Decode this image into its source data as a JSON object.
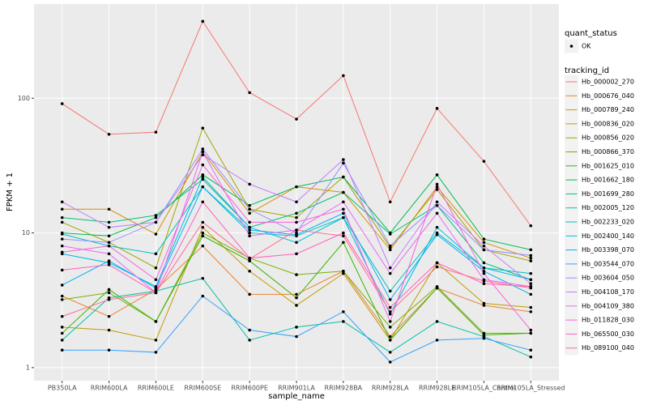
{
  "chart_data": {
    "type": "line",
    "x_label": "sample_name",
    "y_label": "FPKM + 1",
    "log_scale": true,
    "grid": true,
    "ylim": [
      0.8,
      500
    ],
    "yticks": [
      1,
      10,
      100
    ],
    "point_color": "#000000",
    "shape_legend": {
      "title": "quant_status",
      "items": [
        "OK"
      ]
    },
    "color_legend_title": "tracking_id",
    "categories": [
      "PB350LA",
      "RRIM600LA",
      "RRIM600LE",
      "RRIM600SE",
      "RRIM600PE",
      "RRIM901LA",
      "RRIM928BA",
      "RRIM928LA",
      "RRIM928LE",
      "RRIM105LA_Control",
      "RRIM105LA_Stressed"
    ],
    "series": [
      {
        "name": "Hb_000002_270",
        "color": "#F8766D",
        "values": [
          91,
          54,
          56,
          372,
          110,
          70,
          147,
          17,
          84,
          34,
          11.3
        ]
      },
      {
        "name": "Hb_000676_040",
        "color": "#EA8331",
        "values": [
          3.4,
          2.4,
          3.8,
          8,
          3.5,
          3.5,
          5.2,
          1.7,
          3.9,
          2.9,
          2.6
        ]
      },
      {
        "name": "Hb_000789_240",
        "color": "#D89000",
        "values": [
          15,
          15,
          9.8,
          40,
          14,
          22,
          20,
          7.5,
          22,
          8.5,
          6.5
        ]
      },
      {
        "name": "Hb_000836_020",
        "color": "#C09B00",
        "values": [
          2.0,
          1.9,
          1.6,
          11,
          5.2,
          2.9,
          5.0,
          1.6,
          6,
          3,
          2.8
        ]
      },
      {
        "name": "Hb_000856_020",
        "color": "#A3A500",
        "values": [
          12,
          8.5,
          5.5,
          60,
          15,
          13,
          26,
          7.8,
          21,
          7.5,
          6.2
        ]
      },
      {
        "name": "Hb_000866_370",
        "color": "#7CAE00",
        "values": [
          3.2,
          3.6,
          2.2,
          10,
          6.5,
          4.9,
          5.2,
          2.0,
          4,
          1.8,
          1.8
        ]
      },
      {
        "name": "Hb_001625_010",
        "color": "#39B600",
        "values": [
          1.8,
          3.8,
          2.2,
          9.5,
          6.2,
          3.3,
          8.5,
          1.6,
          3.9,
          1.75,
          1.8
        ]
      },
      {
        "name": "Hb_001662_180",
        "color": "#00BB4E",
        "values": [
          10,
          9.5,
          13,
          27,
          16,
          22,
          26,
          10,
          27,
          9,
          7.5
        ]
      },
      {
        "name": "Hb_001699_280",
        "color": "#00BF7D",
        "values": [
          13,
          12,
          13.5,
          25,
          11,
          14,
          20,
          9.8,
          16,
          6,
          4.5
        ]
      },
      {
        "name": "Hb_002005_120",
        "color": "#00C1A3",
        "values": [
          1.6,
          3.3,
          3.7,
          4.6,
          1.6,
          2.0,
          2.2,
          1.3,
          2.2,
          1.7,
          1.2
        ]
      },
      {
        "name": "Hb_002233_020",
        "color": "#00BFC4",
        "values": [
          9.8,
          8,
          7,
          22,
          10,
          9.5,
          13,
          3.7,
          10,
          5.5,
          5
        ]
      },
      {
        "name": "Hb_002400_140",
        "color": "#00BAE0",
        "values": [
          7,
          6,
          4,
          26,
          11,
          8.5,
          13,
          2.5,
          11,
          5.5,
          4.5
        ]
      },
      {
        "name": "Hb_003398_070",
        "color": "#00B0F6",
        "values": [
          4.1,
          6.2,
          3.9,
          22,
          10.5,
          9.7,
          14,
          3.2,
          9.7,
          5.2,
          3.5
        ]
      },
      {
        "name": "Hb_003544_070",
        "color": "#35A2FF",
        "values": [
          1.35,
          1.35,
          1.3,
          3.4,
          1.9,
          1.7,
          2.6,
          1.1,
          1.6,
          1.65,
          1.35
        ]
      },
      {
        "name": "Hb_003604_050",
        "color": "#9590FF",
        "values": [
          9,
          8.5,
          12,
          42,
          15,
          10,
          33,
          8,
          16,
          7.5,
          6.8
        ]
      },
      {
        "name": "Hb_004108_170",
        "color": "#C77CFF",
        "values": [
          17,
          11,
          12,
          38,
          23,
          17,
          35,
          5.5,
          17,
          8,
          4.2
        ]
      },
      {
        "name": "Hb_004109_380",
        "color": "#E76BF3",
        "values": [
          8,
          7,
          3.6,
          40,
          9.5,
          10.5,
          17,
          5,
          14,
          4.5,
          4
        ]
      },
      {
        "name": "Hb_011828_030",
        "color": "#FA62DB",
        "values": [
          7.2,
          8,
          4.5,
          32,
          12,
          12,
          15,
          2.2,
          23,
          5,
          1.9
        ]
      },
      {
        "name": "Hb_065500_030",
        "color": "#FF62BC",
        "values": [
          5.3,
          5.8,
          3.6,
          17,
          6.5,
          7,
          10,
          2.8,
          6,
          4.2,
          4
        ]
      },
      {
        "name": "Hb_089100_040",
        "color": "#FF6C91",
        "values": [
          2.4,
          3.2,
          3.6,
          12,
          6.4,
          10.5,
          9.5,
          2.6,
          5.6,
          4.4,
          3.9
        ]
      }
    ]
  }
}
